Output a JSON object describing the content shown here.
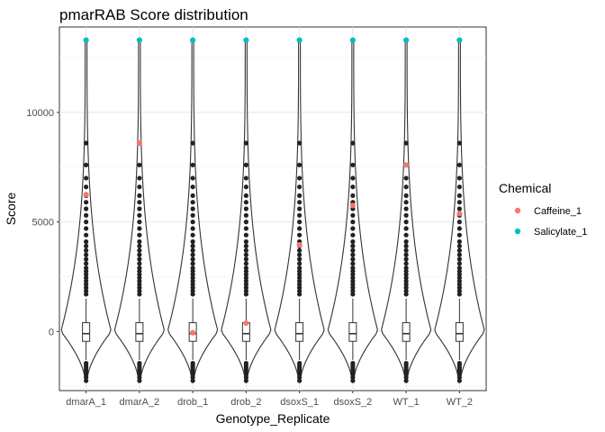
{
  "chart_data": {
    "type": "violin",
    "title": "pmarRAB Score distribution",
    "xlabel": "Genotype_Replicate",
    "ylabel": "Score",
    "categories": [
      "dmarA_1",
      "dmarA_2",
      "drob_1",
      "drob_2",
      "dsoxS_1",
      "dsoxS_2",
      "WT_1",
      "WT_2"
    ],
    "ylim": [
      -2700,
      13900
    ],
    "yticks": [
      0,
      5000,
      10000
    ],
    "ytick_labels": [
      "0",
      "5000",
      "10000"
    ],
    "grid": true,
    "legend_position": "right",
    "legend_title": "Chemical",
    "series": [
      {
        "name": "Caffeine_1",
        "color": "#F8766D",
        "values": [
          6250,
          8600,
          -60,
          380,
          3950,
          5750,
          7600,
          5380
        ]
      },
      {
        "name": "Salicylate_1",
        "color": "#00BFC4",
        "values": [
          13300,
          13300,
          13300,
          13300,
          13300,
          13300,
          13300,
          13300
        ]
      }
    ],
    "box": {
      "q1": -450,
      "median": -100,
      "q3": 400,
      "whisker_low": -1300,
      "whisker_high": 1500
    },
    "outlier_values": [
      -2250,
      -2100,
      -1950,
      -1850,
      -1750,
      -1650,
      -1550,
      -1450,
      1700,
      1850,
      2000,
      2150,
      2300,
      2450,
      2600,
      2750,
      2900,
      3100,
      3300,
      3500,
      3700,
      3900,
      4100,
      4400,
      4700,
      5000,
      5300,
      5600,
      5900,
      6200,
      6600,
      7000,
      7600,
      8600,
      13300
    ]
  }
}
